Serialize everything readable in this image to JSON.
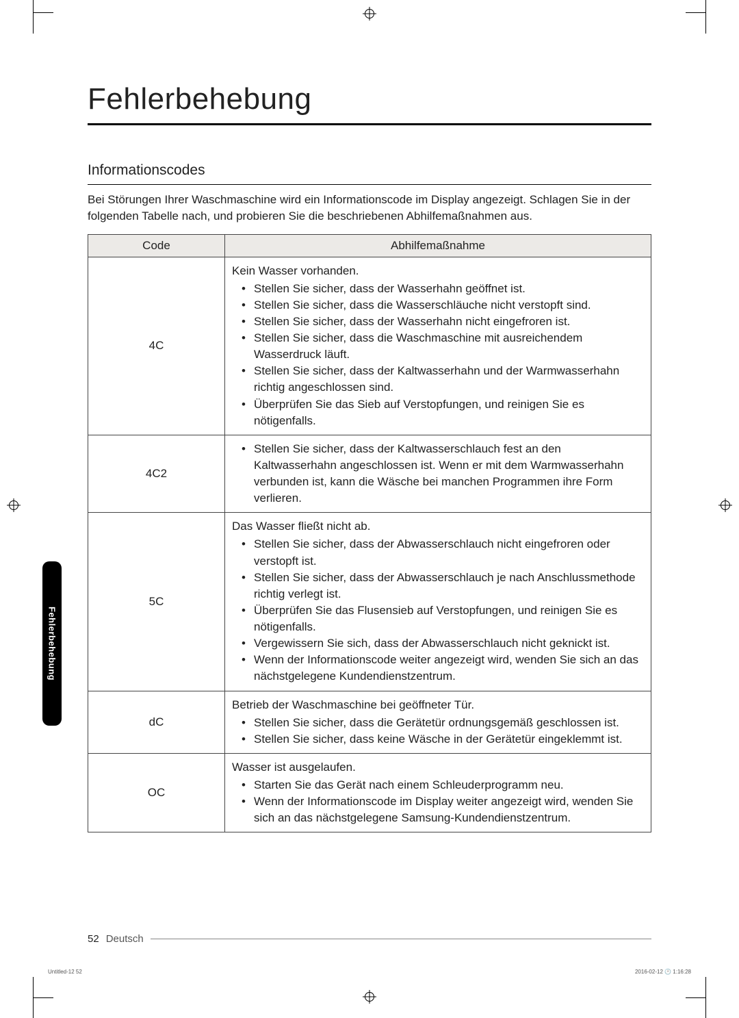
{
  "title": "Fehlerbehebung",
  "section_heading": "Informationscodes",
  "intro": "Bei Störungen Ihrer Waschmaschine wird ein Informationscode im Display angezeigt. Schlagen Sie in der folgenden Tabelle nach, und probieren Sie die beschriebenen Abhilfemaßnahmen aus.",
  "table": {
    "headers": {
      "code": "Code",
      "action": "Abhilfemaßnahme"
    },
    "rows": [
      {
        "code": "4C",
        "lead": "Kein Wasser vorhanden.",
        "items": [
          "Stellen Sie sicher, dass der Wasserhahn geöffnet ist.",
          "Stellen Sie sicher, dass die Wasserschläuche nicht verstopft sind.",
          "Stellen Sie sicher, dass der Wasserhahn nicht eingefroren ist.",
          "Stellen Sie sicher, dass die Waschmaschine mit ausreichendem Wasserdruck läuft.",
          "Stellen Sie sicher, dass der Kaltwasserhahn und der Warmwasserhahn richtig angeschlossen sind.",
          "Überprüfen Sie das Sieb auf Verstopfungen, und reinigen Sie es nötigenfalls."
        ]
      },
      {
        "code": "4C2",
        "lead": "",
        "items": [
          "Stellen Sie sicher, dass der Kaltwasserschlauch fest an den Kaltwasserhahn angeschlossen ist. Wenn er mit dem Warmwasserhahn verbunden ist, kann die Wäsche bei manchen Programmen ihre Form verlieren."
        ]
      },
      {
        "code": "5C",
        "lead": "Das Wasser fließt nicht ab.",
        "items": [
          "Stellen Sie sicher, dass der Abwasserschlauch nicht eingefroren oder verstopft ist.",
          "Stellen Sie sicher, dass der Abwasserschlauch je nach Anschlussmethode richtig verlegt ist.",
          "Überprüfen Sie das Flusensieb auf Verstopfungen, und reinigen Sie es nötigenfalls.",
          "Vergewissern Sie sich, dass der Abwasserschlauch nicht geknickt ist.",
          "Wenn der Informationscode weiter angezeigt wird, wenden Sie sich an das nächstgelegene Kundendienstzentrum."
        ]
      },
      {
        "code": "dC",
        "lead": "Betrieb der Waschmaschine bei geöffneter Tür.",
        "items": [
          "Stellen Sie sicher, dass die Gerätetür ordnungsgemäß geschlossen ist.",
          "Stellen Sie sicher, dass keine Wäsche in der Gerätetür eingeklemmt ist."
        ]
      },
      {
        "code": "OC",
        "lead": "Wasser ist ausgelaufen.",
        "items": [
          "Starten Sie das Gerät nach einem Schleuderprogramm neu.",
          "Wenn der Informationscode im Display weiter angezeigt wird, wenden Sie sich an das nächstgelegene Samsung-Kundendienstzentrum."
        ]
      }
    ]
  },
  "side_tab": "Fehlerbehebung",
  "footer": {
    "page_num": "52",
    "lang": "Deutsch"
  },
  "imprint": {
    "left": "Untitled-12   52",
    "right": "2016-02-12   🕐 1:16:28"
  },
  "colors": {
    "header_bg": "#eceae7",
    "border": "#444444",
    "text": "#222222",
    "tab_bg": "#000000",
    "tab_text": "#ffffff"
  }
}
